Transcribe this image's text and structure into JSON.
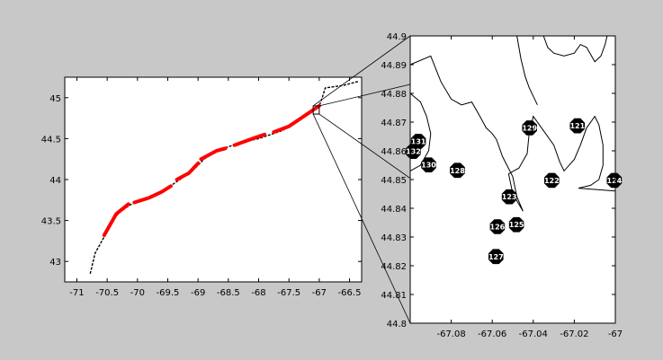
{
  "colors": {
    "figure_background": "#c8c8c8",
    "axes_background": "#ffffff",
    "coastline": "#000000",
    "highlight": "#ff0000",
    "station_marker": "#000000",
    "station_text": "#ffffff"
  },
  "chart_data": [
    {
      "type": "map",
      "panel": "overview",
      "xlim": [
        -71.2,
        -66.3
      ],
      "ylim": [
        42.75,
        45.25
      ],
      "x_ticks": [
        -71,
        -70.5,
        -70,
        -69.5,
        -69,
        -68.5,
        -68,
        -67.5,
        -67,
        -66.5
      ],
      "x_tick_labels": [
        "-71",
        "-70.5",
        "-70",
        "-69.5",
        "-69",
        "-68.5",
        "-68",
        "-67.5",
        "-67",
        "-66.5"
      ],
      "y_ticks": [
        43,
        43.5,
        44,
        44.5,
        45
      ],
      "y_tick_labels": [
        "43",
        "43.5",
        "44",
        "44.5",
        "45"
      ],
      "grid": false,
      "coastline_path": [
        [
          -70.78,
          42.85
        ],
        [
          -70.7,
          43.1
        ],
        [
          -70.55,
          43.3
        ],
        [
          -70.45,
          43.45
        ],
        [
          -70.3,
          43.6
        ],
        [
          -70.1,
          43.7
        ],
        [
          -69.9,
          43.75
        ],
        [
          -69.7,
          43.8
        ],
        [
          -69.5,
          43.9
        ],
        [
          -69.3,
          44.0
        ],
        [
          -69.1,
          44.1
        ],
        [
          -68.9,
          44.25
        ],
        [
          -68.7,
          44.35
        ],
        [
          -68.5,
          44.4
        ],
        [
          -68.3,
          44.45
        ],
        [
          -68.0,
          44.5
        ],
        [
          -67.8,
          44.55
        ],
        [
          -67.6,
          44.6
        ],
        [
          -67.4,
          44.7
        ],
        [
          -67.2,
          44.8
        ],
        [
          -67.0,
          44.9
        ],
        [
          -66.95,
          45.0
        ],
        [
          -66.9,
          45.12
        ],
        [
          -66.6,
          45.15
        ],
        [
          -66.35,
          45.2
        ]
      ],
      "highlight_segments": [
        [
          [
            -70.55,
            43.32
          ],
          [
            -70.35,
            43.58
          ],
          [
            -70.15,
            43.7
          ]
        ],
        [
          [
            -70.05,
            43.72
          ],
          [
            -69.8,
            43.78
          ],
          [
            -69.6,
            43.85
          ],
          [
            -69.45,
            43.92
          ]
        ],
        [
          [
            -69.35,
            44.0
          ],
          [
            -69.15,
            44.08
          ],
          [
            -69.0,
            44.2
          ]
        ],
        [
          [
            -68.95,
            44.25
          ],
          [
            -68.7,
            44.35
          ],
          [
            -68.55,
            44.38
          ]
        ],
        [
          [
            -68.4,
            44.42
          ],
          [
            -68.1,
            44.5
          ],
          [
            -67.9,
            44.55
          ]
        ],
        [
          [
            -67.75,
            44.58
          ],
          [
            -67.5,
            44.65
          ],
          [
            -67.3,
            44.75
          ],
          [
            -67.1,
            44.85
          ],
          [
            -67.0,
            44.9
          ]
        ]
      ],
      "zoom_box": {
        "xlim": [
          -67.1,
          -67.0
        ],
        "ylim": [
          44.8,
          44.9
        ]
      }
    },
    {
      "type": "map",
      "panel": "inset",
      "xlim": [
        -67.1,
        -67.0
      ],
      "ylim": [
        44.8,
        44.9
      ],
      "x_ticks": [
        -67.08,
        -67.06,
        -67.04,
        -67.02,
        -67.0
      ],
      "x_tick_labels": [
        "-67.08",
        "-67.06",
        "-67.04",
        "-67.02",
        "-67"
      ],
      "y_ticks": [
        44.8,
        44.81,
        44.82,
        44.83,
        44.84,
        44.85,
        44.86,
        44.87,
        44.88,
        44.89,
        44.9
      ],
      "y_tick_labels": [
        "44.8",
        "44.81",
        "44.82",
        "44.83",
        "44.84",
        "44.85",
        "44.86",
        "44.87",
        "44.88",
        "44.89",
        "44.9"
      ],
      "grid": false,
      "coastlines": [
        [
          [
            -67.1,
            44.89
          ],
          [
            -67.09,
            44.893
          ],
          [
            -67.085,
            44.884
          ],
          [
            -67.08,
            44.878
          ],
          [
            -67.075,
            44.876
          ],
          [
            -67.07,
            44.877
          ],
          [
            -67.066,
            44.872
          ],
          [
            -67.063,
            44.868
          ],
          [
            -67.06,
            44.866
          ],
          [
            -67.058,
            44.864
          ],
          [
            -67.055,
            44.858
          ],
          [
            -67.05,
            44.851
          ],
          [
            -67.048,
            44.844
          ],
          [
            -67.045,
            44.839
          ],
          [
            -67.05,
            44.845
          ],
          [
            -67.052,
            44.852
          ],
          [
            -67.047,
            44.854
          ],
          [
            -67.043,
            44.859
          ],
          [
            -67.042,
            44.866
          ],
          [
            -67.04,
            44.872
          ],
          [
            -67.035,
            44.867
          ],
          [
            -67.03,
            44.862
          ],
          [
            -67.027,
            44.856
          ],
          [
            -67.025,
            44.853
          ],
          [
            -67.02,
            44.857
          ],
          [
            -67.017,
            44.862
          ],
          [
            -67.014,
            44.868
          ],
          [
            -67.01,
            44.872
          ],
          [
            -67.008,
            44.869
          ],
          [
            -67.006,
            44.862
          ],
          [
            -67.006,
            44.855
          ],
          [
            -67.008,
            44.85
          ],
          [
            -67.012,
            44.848
          ],
          [
            -67.018,
            44.847
          ],
          [
            -67.0,
            44.846
          ]
        ],
        [
          [
            -67.1,
            44.88
          ],
          [
            -67.095,
            44.877
          ],
          [
            -67.092,
            44.872
          ],
          [
            -67.09,
            44.866
          ],
          [
            -67.091,
            44.86
          ],
          [
            -67.095,
            44.855
          ],
          [
            -67.1,
            44.853
          ]
        ],
        [
          [
            -67.048,
            44.9
          ],
          [
            -67.046,
            44.892
          ],
          [
            -67.044,
            44.886
          ],
          [
            -67.042,
            44.882
          ],
          [
            -67.04,
            44.879
          ],
          [
            -67.038,
            44.876
          ]
        ],
        [
          [
            -67.035,
            44.9
          ],
          [
            -67.033,
            44.896
          ],
          [
            -67.03,
            44.894
          ],
          [
            -67.025,
            44.893
          ],
          [
            -67.02,
            44.894
          ],
          [
            -67.017,
            44.897
          ],
          [
            -67.014,
            44.896
          ],
          [
            -67.01,
            44.891
          ],
          [
            -67.007,
            44.893
          ],
          [
            -67.005,
            44.897
          ],
          [
            -67.004,
            44.9
          ]
        ]
      ],
      "stations": [
        {
          "id": "121",
          "lon": -67.0185,
          "lat": 44.8687
        },
        {
          "id": "122",
          "lon": -67.031,
          "lat": 44.8497
        },
        {
          "id": "123",
          "lon": -67.0517,
          "lat": 44.844
        },
        {
          "id": "124",
          "lon": -67.0005,
          "lat": 44.8497
        },
        {
          "id": "125",
          "lon": -67.0482,
          "lat": 44.8343
        },
        {
          "id": "126",
          "lon": -67.0575,
          "lat": 44.8336
        },
        {
          "id": "127",
          "lon": -67.0582,
          "lat": 44.8232
        },
        {
          "id": "128",
          "lon": -67.077,
          "lat": 44.8532
        },
        {
          "id": "129",
          "lon": -67.0418,
          "lat": 44.868
        },
        {
          "id": "130",
          "lon": -67.091,
          "lat": 44.8551
        },
        {
          "id": "131",
          "lon": -67.096,
          "lat": 44.8633
        },
        {
          "id": "132",
          "lon": -67.0985,
          "lat": 44.8598
        }
      ]
    }
  ]
}
